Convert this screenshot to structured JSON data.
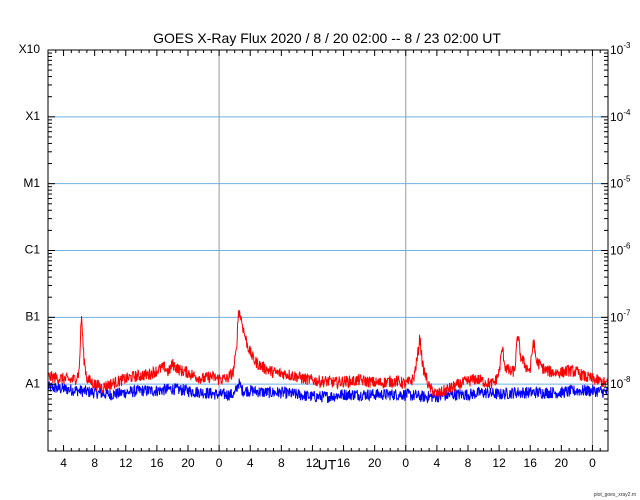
{
  "chart_data": {
    "type": "line",
    "title": "GOES X-Ray Flux   2020 /  8 / 20   02:00 --  8 / 23   02:00   UT",
    "xlabel": "UT",
    "footer": "plot_goes_xray2.m",
    "x_range_hours": [
      0,
      72
    ],
    "x_tick_labels": [
      "4",
      "8",
      "12",
      "16",
      "20",
      "0",
      "4",
      "8",
      "12",
      "16",
      "20",
      "0",
      "4",
      "8",
      "12",
      "16",
      "20",
      "0"
    ],
    "x_tick_hours": [
      2,
      6,
      10,
      14,
      18,
      22,
      26,
      30,
      34,
      38,
      42,
      46,
      50,
      54,
      58,
      62,
      66,
      70
    ],
    "day_boundary_hours": [
      22,
      46,
      70
    ],
    "y_scale": "log",
    "ylim_wm2": [
      1e-09,
      0.001
    ],
    "left_labels": [
      {
        "text": "X10",
        "value": 0.001
      },
      {
        "text": "X1",
        "value": 0.0001
      },
      {
        "text": "M1",
        "value": 1e-05
      },
      {
        "text": "C1",
        "value": 1e-06
      },
      {
        "text": "B1",
        "value": 1e-07
      },
      {
        "text": "A1",
        "value": 1e-08
      }
    ],
    "right_labels": [
      {
        "base": "10",
        "exp": "-3",
        "value": 0.001
      },
      {
        "base": "10",
        "exp": "-4",
        "value": 0.0001
      },
      {
        "base": "10",
        "exp": "-5",
        "value": 1e-05
      },
      {
        "base": "10",
        "exp": "-6",
        "value": 1e-06
      },
      {
        "base": "10",
        "exp": "-7",
        "value": 1e-07
      },
      {
        "base": "10",
        "exp": "-8",
        "value": 1e-08
      }
    ],
    "grid_levels": [
      0.0001,
      1e-05,
      1e-06,
      1e-07,
      1e-08
    ],
    "series": [
      {
        "color": "#ff0000",
        "points": [
          [
            0,
            1.3e-08
          ],
          [
            1,
            1.25e-08
          ],
          [
            2,
            1.2e-08
          ],
          [
            3,
            1.15e-08
          ],
          [
            3.5,
            1.2e-08
          ],
          [
            4,
            1.5e-08
          ],
          [
            4.3,
            1.1e-07
          ],
          [
            4.6,
            2.5e-08
          ],
          [
            5,
            1.2e-08
          ],
          [
            6,
            1e-08
          ],
          [
            7,
            9e-09
          ],
          [
            8,
            1e-08
          ],
          [
            9,
            1.1e-08
          ],
          [
            10,
            1.2e-08
          ],
          [
            11,
            1.3e-08
          ],
          [
            12,
            1.35e-08
          ],
          [
            13,
            1.4e-08
          ],
          [
            14,
            1.6e-08
          ],
          [
            15,
            1.8e-08
          ],
          [
            15.5,
            1.5e-08
          ],
          [
            16,
            2e-08
          ],
          [
            17,
            1.6e-08
          ],
          [
            18,
            1.5e-08
          ],
          [
            19,
            1.3e-08
          ],
          [
            20,
            1.2e-08
          ],
          [
            21,
            1.3e-08
          ],
          [
            22,
            1.2e-08
          ],
          [
            23,
            1.2e-08
          ],
          [
            23.8,
            1.5e-08
          ],
          [
            24.2,
            3e-08
          ],
          [
            24.5,
            1.3e-07
          ],
          [
            24.8,
            1e-07
          ],
          [
            25.2,
            6e-08
          ],
          [
            25.6,
            4e-08
          ],
          [
            26,
            3e-08
          ],
          [
            26.5,
            2.3e-08
          ],
          [
            27,
            2e-08
          ],
          [
            28,
            1.7e-08
          ],
          [
            29,
            1.5e-08
          ],
          [
            30,
            1.45e-08
          ],
          [
            31,
            1.4e-08
          ],
          [
            32,
            1.3e-08
          ],
          [
            33,
            1.2e-08
          ],
          [
            34,
            1.15e-08
          ],
          [
            35,
            1.1e-08
          ],
          [
            36,
            1.1e-08
          ],
          [
            37,
            1.05e-08
          ],
          [
            38,
            1.1e-08
          ],
          [
            39,
            1.1e-08
          ],
          [
            40,
            1.15e-08
          ],
          [
            41,
            1.1e-08
          ],
          [
            42,
            1.05e-08
          ],
          [
            43,
            1.05e-08
          ],
          [
            44,
            1.1e-08
          ],
          [
            45,
            1.1e-08
          ],
          [
            46,
            1e-08
          ],
          [
            47,
            1.2e-08
          ],
          [
            47.5,
            2.5e-08
          ],
          [
            47.8,
            5e-08
          ],
          [
            48.2,
            1.8e-08
          ],
          [
            49,
            9e-09
          ],
          [
            50,
            7e-09
          ],
          [
            51,
            8e-09
          ],
          [
            52,
            9e-09
          ],
          [
            53,
            1e-08
          ],
          [
            54,
            1.1e-08
          ],
          [
            55,
            1.2e-08
          ],
          [
            56,
            1.1e-08
          ],
          [
            57,
            1e-08
          ],
          [
            57.5,
            1.1e-08
          ],
          [
            58,
            1.5e-08
          ],
          [
            58.4,
            3.5e-08
          ],
          [
            58.8,
            1.8e-08
          ],
          [
            59.5,
            1.5e-08
          ],
          [
            60,
            1.6e-08
          ],
          [
            60.4,
            5.5e-08
          ],
          [
            60.8,
            2.5e-08
          ],
          [
            61.5,
            1.8e-08
          ],
          [
            62,
            1.6e-08
          ],
          [
            62.4,
            4.5e-08
          ],
          [
            62.8,
            2.2e-08
          ],
          [
            63.5,
            1.8e-08
          ],
          [
            64,
            1.6e-08
          ],
          [
            65,
            1.5e-08
          ],
          [
            66,
            1.5e-08
          ],
          [
            67,
            1.6e-08
          ],
          [
            68,
            1.5e-08
          ],
          [
            69,
            1.3e-08
          ],
          [
            70,
            1.2e-08
          ],
          [
            71,
            1.1e-08
          ],
          [
            72,
            1e-08
          ]
        ]
      },
      {
        "color": "#0000ff",
        "points": [
          [
            0,
            9e-09
          ],
          [
            2,
            8.5e-09
          ],
          [
            4,
            8e-09
          ],
          [
            6,
            7.5e-09
          ],
          [
            8,
            7e-09
          ],
          [
            10,
            7.5e-09
          ],
          [
            12,
            8e-09
          ],
          [
            14,
            8e-09
          ],
          [
            16,
            8.5e-09
          ],
          [
            18,
            8e-09
          ],
          [
            20,
            7.5e-09
          ],
          [
            22,
            7e-09
          ],
          [
            24,
            7e-09
          ],
          [
            24.5,
            1.05e-08
          ],
          [
            25,
            8e-09
          ],
          [
            26,
            8e-09
          ],
          [
            28,
            7.5e-09
          ],
          [
            30,
            7.5e-09
          ],
          [
            32,
            7e-09
          ],
          [
            34,
            6.5e-09
          ],
          [
            36,
            6.5e-09
          ],
          [
            38,
            7e-09
          ],
          [
            40,
            7e-09
          ],
          [
            42,
            7e-09
          ],
          [
            44,
            7e-09
          ],
          [
            46,
            7e-09
          ],
          [
            48,
            6.5e-09
          ],
          [
            50,
            6.5e-09
          ],
          [
            52,
            7e-09
          ],
          [
            54,
            7e-09
          ],
          [
            56,
            7.5e-09
          ],
          [
            58,
            7e-09
          ],
          [
            60,
            7.5e-09
          ],
          [
            62,
            7.5e-09
          ],
          [
            64,
            7.5e-09
          ],
          [
            66,
            7.5e-09
          ],
          [
            68,
            8e-09
          ],
          [
            70,
            8e-09
          ],
          [
            72,
            7.5e-09
          ]
        ]
      }
    ],
    "grid": true
  }
}
